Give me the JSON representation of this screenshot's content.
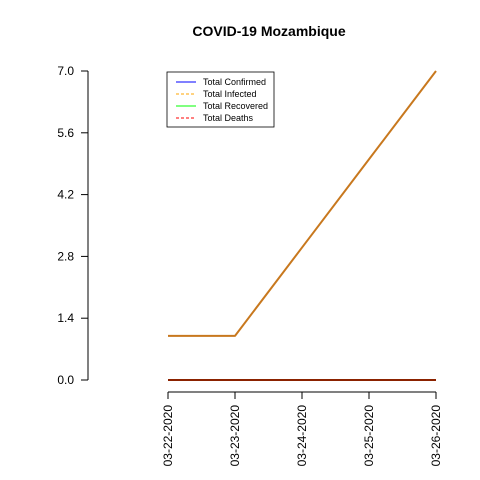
{
  "chart_data": {
    "type": "line",
    "title": "COVID-19 Mozambique",
    "xlabel": "",
    "ylabel": "",
    "categories": [
      "03-22-2020",
      "03-23-2020",
      "03-24-2020",
      "03-25-2020",
      "03-26-2020"
    ],
    "yticks": [
      "0.0",
      "1.4",
      "2.8",
      "4.2",
      "5.6",
      "7.0"
    ],
    "ylim": [
      0,
      7
    ],
    "grid": false,
    "legend_position": "top-left",
    "series": [
      {
        "name": "Total Confirmed",
        "values": [
          1,
          1,
          3,
          5,
          7
        ],
        "color": "#0000ff",
        "dash": "solid"
      },
      {
        "name": "Total Infected",
        "values": [
          1,
          1,
          3,
          5,
          7
        ],
        "color": "#ffa500",
        "dash": "dashed"
      },
      {
        "name": "Total Recovered",
        "values": [
          0,
          0,
          0,
          0,
          0
        ],
        "color": "#00ff00",
        "dash": "solid"
      },
      {
        "name": "Total Deaths",
        "values": [
          0,
          0,
          0,
          0,
          0
        ],
        "color": "#ff0000",
        "dash": "dashed"
      }
    ],
    "drawn_lines": [
      {
        "of": "Total Confirmed/Infected",
        "values": [
          1,
          1,
          3,
          5,
          7
        ],
        "color": "#c8781e"
      },
      {
        "of": "Total Recovered/Deaths",
        "values": [
          0,
          0,
          0,
          0,
          0
        ],
        "color": "#8b2200"
      }
    ]
  }
}
